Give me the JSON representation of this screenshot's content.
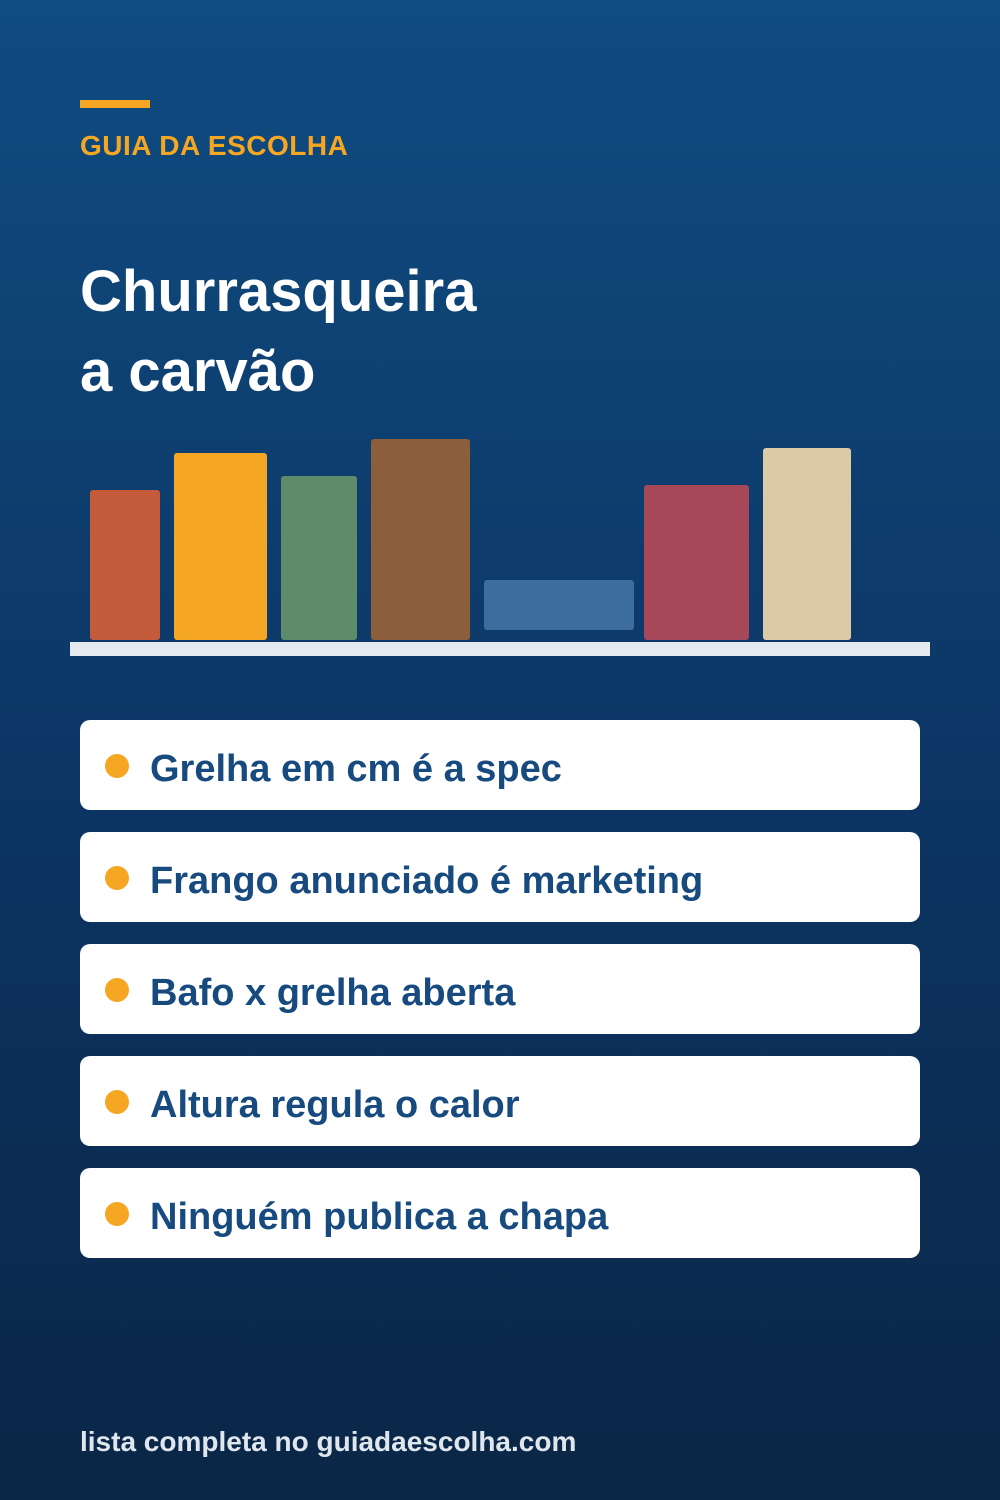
{
  "brand": "GUIA DA ESCOLHA",
  "title": [
    "Churrasqueira",
    "a carvão"
  ],
  "items": [
    "Grelha em cm é a spec",
    "Frango anunciado é marketing",
    "Bafo x grelha aberta",
    "Altura regula o calor",
    "Ninguém publica a chapa"
  ],
  "footer": "lista completa no guiadaescolha.com"
}
